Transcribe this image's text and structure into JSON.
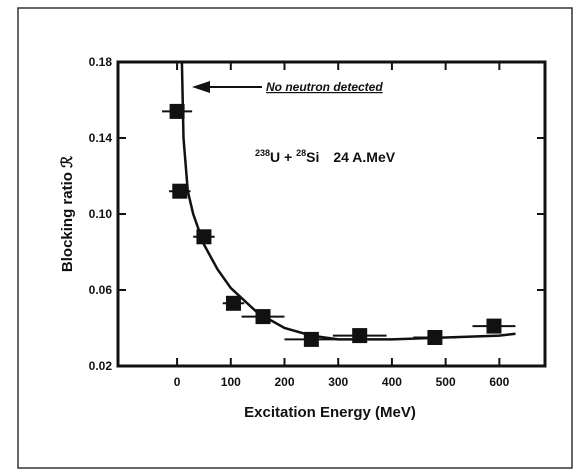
{
  "chart_data": {
    "type": "scatter",
    "xlabel": "Excitation Energy  (MeV)",
    "ylabel": "Blocking ratio ℛ",
    "annotation": "No neutron detected",
    "reaction": [
      "238",
      "U + ",
      "28",
      "Si",
      "24 A.MeV"
    ],
    "xlim": [
      -110,
      685
    ],
    "ylim": [
      0.02,
      0.18
    ],
    "xticks": [
      0,
      100,
      200,
      300,
      400,
      500,
      600
    ],
    "yticks": [
      0.02,
      0.06,
      {
        "value": 0.1,
        "label": "0.10"
      },
      0.14,
      0.18
    ],
    "color": "#111111",
    "series": [
      {
        "x": [
          0,
          5,
          50,
          105,
          160,
          250,
          340,
          480,
          590
        ],
        "values": [
          0.154,
          0.112,
          0.088,
          0.053,
          0.046,
          0.034,
          0.036,
          0.035,
          0.041
        ],
        "x_errors": [
          28,
          20,
          20,
          20,
          40,
          50,
          50,
          40,
          40
        ]
      }
    ],
    "fit": {
      "x": [
        9,
        12,
        20,
        30,
        50,
        75,
        100,
        150,
        200,
        250,
        300,
        400,
        500,
        600,
        630
      ],
      "values": [
        0.18,
        0.14,
        0.112,
        0.1,
        0.084,
        0.071,
        0.061,
        0.048,
        0.04,
        0.036,
        0.034,
        0.034,
        0.035,
        0.036,
        0.037
      ]
    }
  }
}
